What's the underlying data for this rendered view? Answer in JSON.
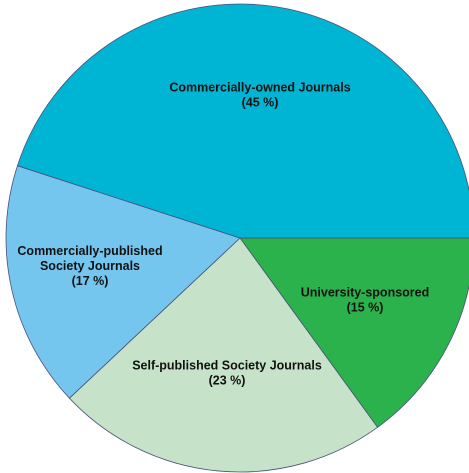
{
  "chart_data": {
    "type": "pie",
    "title": "",
    "start_angle_deg": 0,
    "direction": "clockwise",
    "slices": [
      {
        "label_lines": [
          "University-sponsored",
          "(15 %)"
        ],
        "label": "University-sponsored",
        "value": 15,
        "color": "#2bb24c"
      },
      {
        "label_lines": [
          "Self-published Society Journals",
          "(23 %)"
        ],
        "label": "Self-published Society Journals",
        "value": 23,
        "color": "#c6e3c9"
      },
      {
        "label_lines": [
          "Commercially-published",
          "Society Journals",
          "(17 %)"
        ],
        "label": "Commercially-published Society Journals",
        "value": 17,
        "color": "#74c6ef"
      },
      {
        "label_lines": [
          "Commercially-owned Journals",
          "(45 %)"
        ],
        "label": "Commercially-owned Journals",
        "value": 45,
        "color": "#00b5d3"
      }
    ]
  }
}
